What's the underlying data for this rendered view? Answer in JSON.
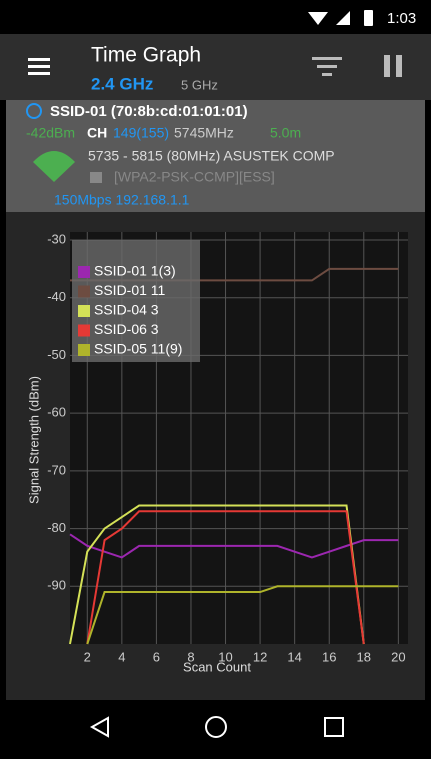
{
  "status_bar": {
    "time": "1:03"
  },
  "app_bar": {
    "title": "Time Graph",
    "tabs": [
      "2.4 GHz",
      "5 GHz"
    ]
  },
  "access_point": {
    "ssid": "SSID-01 (70:8b:cd:01:01:01)",
    "signal": "-42dBm",
    "channel_label": "CH",
    "channel": "149(155)",
    "frequency": "5745MHz",
    "distance": "5.0m",
    "range": "5735 - 5815 (80MHz) ASUSTEK COMP",
    "security": "[WPA2-PSK-CCMP][ESS]",
    "speed": "150Mbps 192.168.1.1"
  },
  "chart_data": {
    "type": "line",
    "x_label": "Scan Count",
    "y_label": "Signal Strength (dBm)",
    "x": [
      1,
      2,
      3,
      4,
      5,
      6,
      7,
      8,
      9,
      10,
      11,
      12,
      13,
      14,
      15,
      16,
      17,
      18,
      19,
      20
    ],
    "series": [
      {
        "name": "SSID-01 1(3)",
        "color": "#9c27b0",
        "values": [
          -81,
          -83,
          -84,
          -85,
          -83,
          -83,
          -83,
          -83,
          -83,
          -83,
          -83,
          -83,
          -83,
          -84,
          -85,
          -84,
          -83,
          -82,
          -82,
          -82
        ]
      },
      {
        "name": "SSID-01 11",
        "color": "#6d4c41",
        "values": [
          -37,
          -37,
          -37,
          -37,
          -37,
          -37,
          -37,
          -37,
          -37,
          -37,
          -37,
          -37,
          -37,
          -37,
          -37,
          -35,
          -35,
          -35,
          -35,
          -35
        ]
      },
      {
        "name": "SSID-04 3",
        "color": "#d4e157",
        "values": [
          -100,
          -84,
          -80,
          -78,
          -76,
          -76,
          -76,
          -76,
          -76,
          -76,
          -76,
          -76,
          -76,
          -76,
          -76,
          -76,
          -76,
          -100,
          null,
          null
        ]
      },
      {
        "name": "SSID-06 3",
        "color": "#e53935",
        "values": [
          null,
          -100,
          -82,
          -80,
          -77,
          -77,
          -77,
          -77,
          -77,
          -77,
          -77,
          -77,
          -77,
          -77,
          -77,
          -77,
          -77,
          -100,
          null,
          null
        ]
      },
      {
        "name": "SSID-05 11(9)",
        "color": "#afb42b",
        "values": [
          null,
          -100,
          -91,
          -91,
          -91,
          -91,
          -91,
          -91,
          -91,
          -91,
          -91,
          -91,
          -90,
          -90,
          -90,
          -90,
          -90,
          -90,
          -90,
          -90
        ]
      }
    ],
    "xlim": [
      1,
      20.5
    ],
    "ylim": [
      -100,
      -30
    ],
    "xticks": [
      2,
      4,
      6,
      8,
      10,
      12,
      14,
      16,
      18,
      20
    ],
    "yticks": [
      -30,
      -40,
      -50,
      -60,
      -70,
      -80,
      -90
    ],
    "grid": true
  }
}
